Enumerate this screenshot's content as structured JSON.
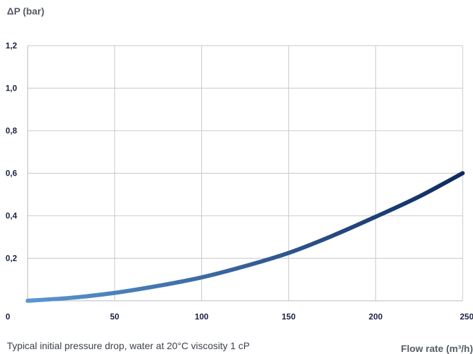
{
  "chart_data": {
    "type": "line",
    "ylabel": "ΔP (bar)",
    "xlabel": "Flow rate (m³/h)",
    "caption": "Typical initial pressure drop, water at 20°C viscosity 1 cP",
    "x_ticks": [
      "0",
      "50",
      "100",
      "150",
      "200",
      "250"
    ],
    "y_ticks": [
      "1,2",
      "1,0",
      "0,8",
      "0,6",
      "0,4",
      "0,2"
    ],
    "xlim": [
      0,
      250
    ],
    "ylim": [
      0,
      1.2
    ],
    "grid": true,
    "line_gradient": [
      "#5b96d2",
      "#0f2a5e"
    ],
    "series": [
      {
        "x": [
          0,
          25,
          50,
          75,
          100,
          125,
          150,
          175,
          200,
          225,
          250
        ],
        "y": [
          0,
          0.014,
          0.037,
          0.07,
          0.11,
          0.163,
          0.225,
          0.305,
          0.395,
          0.49,
          0.6
        ]
      }
    ]
  }
}
